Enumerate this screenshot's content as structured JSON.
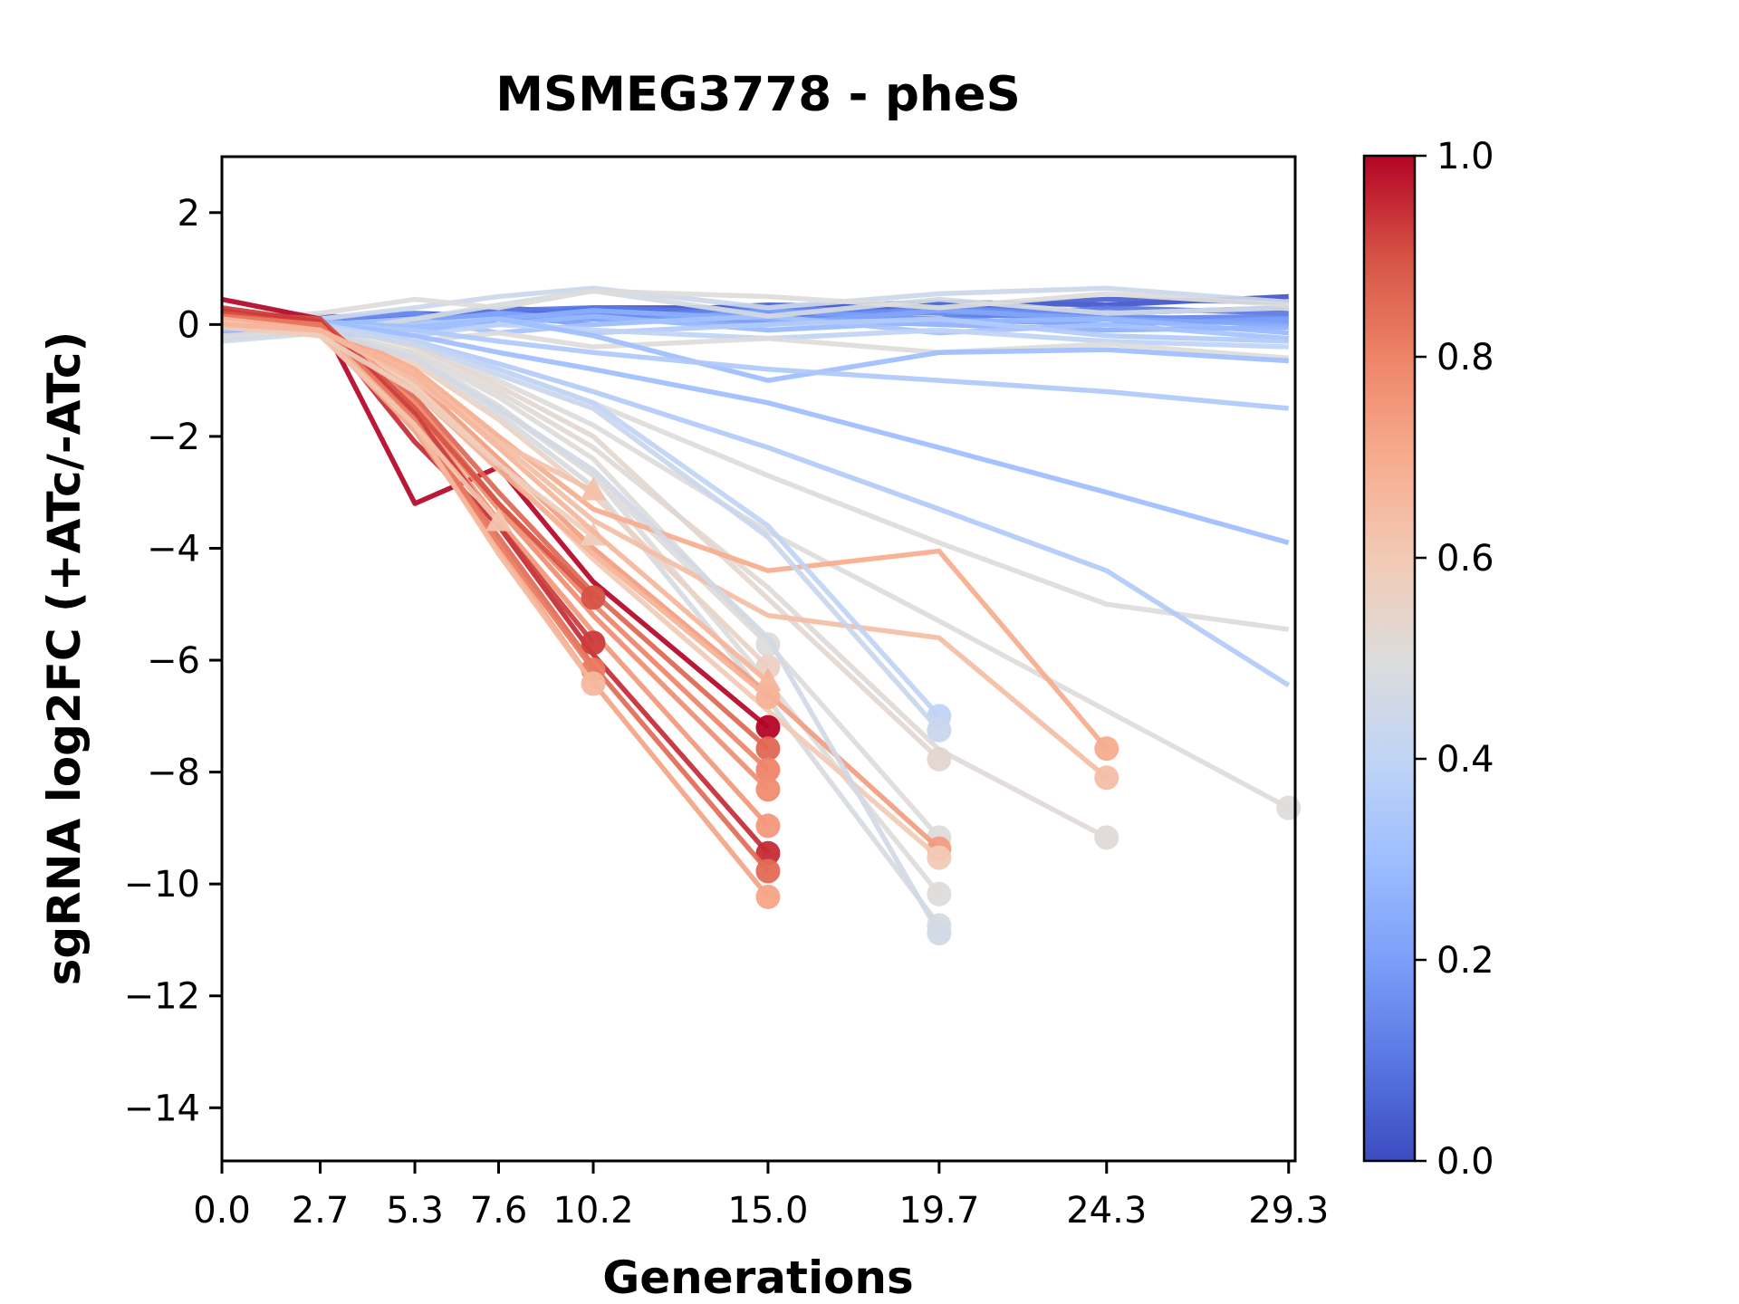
{
  "title": "MSMEG3778 - pheS",
  "xlabel": "Generations",
  "ylabel": "sgRNA log2FC (+ATc/-ATc)",
  "chart_data": {
    "type": "line",
    "title": "MSMEG3778 - pheS",
    "xlabel": "Generations",
    "ylabel": "sgRNA log2FC (+ATc/-ATc)",
    "xlim": [
      0,
      29.48
    ],
    "ylim": [
      -14.95,
      3.0
    ],
    "grid": false,
    "x": [
      0.0,
      2.7,
      5.3,
      7.6,
      10.2,
      15.0,
      19.7,
      24.3,
      29.3
    ],
    "xtick_labels": [
      "0.0",
      "2.7",
      "5.3",
      "7.6",
      "10.2",
      "15.0",
      "19.7",
      "24.3",
      "29.3"
    ],
    "yticks": [
      2,
      0,
      -2,
      -4,
      -6,
      -8,
      -10,
      -12,
      -14
    ],
    "ytick_labels": [
      "2",
      "0",
      "−2",
      "−4",
      "−6",
      "−8",
      "−10",
      "−12",
      "−14"
    ],
    "colorbar": {
      "vmin": 0.0,
      "vmax": 1.0,
      "ticks": [
        1.0,
        0.8,
        0.6,
        0.4,
        0.2,
        0.0
      ],
      "tick_labels": [
        "1.0",
        "0.8",
        "0.6",
        "0.4",
        "0.2",
        "0.0"
      ],
      "cmap": "coolwarm",
      "anchors": [
        [
          0.0,
          "#3b4cc0"
        ],
        [
          0.1,
          "#5977e3"
        ],
        [
          0.2,
          "#7b9ff9"
        ],
        [
          0.3,
          "#9ebeff"
        ],
        [
          0.4,
          "#c0d4f5"
        ],
        [
          0.5,
          "#dddcdb"
        ],
        [
          0.6,
          "#f2cab5"
        ],
        [
          0.7,
          "#f7ac8e"
        ],
        [
          0.8,
          "#ee8468"
        ],
        [
          0.9,
          "#d65244"
        ],
        [
          1.0,
          "#b40426"
        ]
      ]
    },
    "series_note": "c = colormap value (0-1); y values align with x[0..len-1]; m: o=circle end marker, t=triangle end marker",
    "series": [
      {
        "c": 0.5,
        "y": [
          0,
          0,
          -0.3,
          -0.8,
          -1.4,
          -2.7,
          -3.9,
          -5.0,
          -5.45
        ],
        "m": ""
      },
      {
        "c": 0.5,
        "y": [
          0.05,
          0,
          -0.4,
          -1.0,
          -1.8,
          -3.7,
          -5.3,
          -6.9,
          -8.64
        ],
        "m": "o"
      },
      {
        "c": 0.51,
        "y": [
          0,
          -0.1,
          -0.5,
          -1.2,
          -2.2,
          -4.7,
          -7.6,
          -9.17
        ],
        "m": "o"
      },
      {
        "c": 0.53,
        "y": [
          0,
          0,
          -0.4,
          -1.1,
          -2.0,
          -4.9,
          -7.77
        ],
        "m": "o"
      },
      {
        "c": 0.5,
        "y": [
          -0.05,
          -0.1,
          -0.5,
          -1.3,
          -2.4,
          -5.7,
          -9.17
        ],
        "m": "o"
      },
      {
        "c": 0.5,
        "y": [
          0,
          -0.05,
          -0.55,
          -1.45,
          -2.7,
          -6.4,
          -10.18
        ],
        "m": "o"
      },
      {
        "c": 0.48,
        "y": [
          -0.1,
          -0.15,
          -0.6,
          -1.6,
          -2.9,
          -6.7,
          -10.74
        ],
        "m": "o"
      },
      {
        "c": 0.5,
        "y": [
          0,
          0,
          -0.6,
          -1.5,
          -2.7,
          -5.72
        ],
        "m": "o"
      },
      {
        "c": 0.56,
        "y": [
          -0.05,
          -0.1,
          -0.7,
          -1.7,
          -3.05,
          -6.12
        ],
        "m": "o"
      },
      {
        "c": 0.7,
        "y": [
          0.1,
          0,
          -0.8,
          -2.0,
          -3.3,
          -4.4,
          -4.05,
          -7.58
        ],
        "m": "o"
      },
      {
        "c": 0.64,
        "y": [
          0,
          -0.1,
          -0.9,
          -2.1,
          -3.5,
          -5.2,
          -5.6,
          -8.1
        ],
        "m": "o"
      },
      {
        "c": 0.74,
        "y": [
          0.05,
          0,
          -1.0,
          -2.4,
          -4.0,
          -6.6,
          -9.37
        ],
        "m": "o"
      },
      {
        "c": 0.6,
        "y": [
          -0.1,
          -0.15,
          -1.1,
          -2.5,
          -4.2,
          -6.9,
          -9.53
        ],
        "m": "o"
      },
      {
        "c": 0.02,
        "y": [
          0.15,
          0.1,
          0.2,
          0.15,
          0.3,
          0.3,
          0.4,
          0.35,
          0.5
        ],
        "m": ""
      },
      {
        "c": 0.05,
        "y": [
          0.05,
          0.15,
          0.1,
          0.3,
          0.2,
          0.35,
          0.3,
          0.45,
          0.4
        ],
        "m": ""
      },
      {
        "c": 0.08,
        "y": [
          -0.05,
          0.05,
          0.15,
          0.1,
          0.25,
          0.15,
          0.35,
          0.2,
          0.3
        ],
        "m": ""
      },
      {
        "c": 0.1,
        "y": [
          0.1,
          0,
          0.1,
          0.25,
          0.3,
          0.2,
          0.1,
          0.3,
          0.2
        ],
        "m": ""
      },
      {
        "c": 0.13,
        "y": [
          -0.1,
          0.1,
          0,
          0.15,
          0.1,
          0.3,
          0.2,
          0.1,
          0.15
        ],
        "m": ""
      },
      {
        "c": 0.16,
        "y": [
          0,
          0.1,
          0.2,
          0,
          0.2,
          0.05,
          0.3,
          0.15,
          0.05
        ],
        "m": ""
      },
      {
        "c": 0.2,
        "y": [
          -0.15,
          0,
          0.1,
          0.15,
          0,
          0.25,
          0.1,
          0,
          0.1
        ],
        "m": ""
      },
      {
        "c": 0.22,
        "y": [
          0.05,
          -0.05,
          0.05,
          0.2,
          0.1,
          0,
          0.25,
          0.1,
          0
        ],
        "m": ""
      },
      {
        "c": 0.25,
        "y": [
          -0.2,
          -0.1,
          0,
          0.1,
          0.25,
          0.1,
          0,
          -0.1,
          -0.05
        ],
        "m": ""
      },
      {
        "c": 0.28,
        "y": [
          0.1,
          0.05,
          -0.1,
          0,
          0.15,
          -0.1,
          0.05,
          0.1,
          -0.15
        ],
        "m": ""
      },
      {
        "c": 0.32,
        "y": [
          -0.1,
          0,
          0.1,
          -0.15,
          0,
          0.15,
          -0.15,
          0,
          -0.25
        ],
        "m": ""
      },
      {
        "c": 0.36,
        "y": [
          0,
          -0.1,
          0,
          0.1,
          -0.15,
          0,
          0.1,
          -0.2,
          -0.3
        ],
        "m": ""
      },
      {
        "c": 0.4,
        "y": [
          -0.25,
          -0.1,
          -0.2,
          0,
          -0.1,
          -0.25,
          -0.1,
          -0.3,
          -0.4
        ],
        "m": ""
      },
      {
        "c": 0.44,
        "y": [
          0.2,
          0.1,
          0.3,
          0.5,
          0.65,
          0.3,
          0.55,
          0.65,
          0.4
        ],
        "m": ""
      },
      {
        "c": 0.47,
        "y": [
          -0.3,
          -0.15,
          0.1,
          0.35,
          0.6,
          0.15,
          0.45,
          0.2,
          0.3
        ],
        "m": ""
      },
      {
        "c": 0.5,
        "y": [
          0.1,
          0.2,
          0.45,
          0.3,
          0.6,
          0.5,
          0.3,
          0.55,
          0.35
        ],
        "m": ""
      },
      {
        "c": 0.5,
        "y": [
          -0.2,
          -0.1,
          -0.3,
          -0.15,
          -0.4,
          -0.25,
          -0.5,
          -0.35,
          -0.6
        ],
        "m": ""
      },
      {
        "c": 0.3,
        "y": [
          0,
          0.05,
          -0.05,
          0.1,
          -0.2,
          -1.0,
          -0.5,
          -0.45,
          -0.65
        ],
        "m": ""
      },
      {
        "c": 0.35,
        "y": [
          0.05,
          0,
          -0.1,
          -0.3,
          -0.5,
          -0.8,
          -1.0,
          -1.2,
          -1.5
        ],
        "m": ""
      },
      {
        "c": 0.3,
        "y": [
          0.1,
          0.05,
          -0.2,
          -0.5,
          -0.8,
          -1.4,
          -2.2,
          -3.0,
          -3.9
        ],
        "m": ""
      },
      {
        "c": 0.36,
        "y": [
          0,
          -0.1,
          -0.3,
          -0.7,
          -1.2,
          -2.2,
          -3.3,
          -4.4,
          -6.45
        ],
        "m": ""
      },
      {
        "c": 0.4,
        "y": [
          0,
          0,
          -0.3,
          -0.8,
          -1.4,
          -3.6,
          -7.0
        ],
        "m": "o"
      },
      {
        "c": 0.43,
        "y": [
          0.05,
          -0.05,
          -0.35,
          -0.9,
          -1.5,
          -3.8,
          -7.25
        ],
        "m": "o"
      },
      {
        "c": 0.46,
        "y": [
          0,
          -0.1,
          -0.6,
          -1.5,
          -2.6,
          -5.6,
          -10.88
        ],
        "m": "o"
      },
      {
        "c": 1.0,
        "y": [
          0.45,
          0.1,
          -3.2,
          -2.55,
          -4.6,
          -7.2
        ],
        "m": "o"
      },
      {
        "c": 0.86,
        "y": [
          0.2,
          0.05,
          -1.3,
          -3.0,
          -4.8,
          -7.58
        ],
        "m": "o"
      },
      {
        "c": 0.8,
        "y": [
          0.1,
          0,
          -1.4,
          -3.2,
          -5.0,
          -7.96
        ],
        "m": "o"
      },
      {
        "c": 0.78,
        "y": [
          0.15,
          -0.05,
          -1.5,
          -3.3,
          -5.2,
          -8.31
        ],
        "m": "o"
      },
      {
        "c": 0.75,
        "y": [
          0,
          -0.1,
          -1.6,
          -3.5,
          -5.5,
          -8.96
        ],
        "m": "o"
      },
      {
        "c": 0.95,
        "y": [
          0.25,
          0,
          -2.1,
          -3.6,
          -5.9,
          -9.45
        ],
        "m": "o"
      },
      {
        "c": 0.85,
        "y": [
          0.1,
          -0.05,
          -1.8,
          -3.8,
          -6.1,
          -9.77
        ],
        "m": "o"
      },
      {
        "c": 0.72,
        "y": [
          0.05,
          -0.15,
          -1.9,
          -4.0,
          -6.4,
          -10.23
        ],
        "m": "o"
      },
      {
        "c": 0.68,
        "y": [
          0,
          -0.1,
          -1.2,
          -2.6,
          -4.1,
          -6.66
        ],
        "m": "o"
      },
      {
        "c": 0.9,
        "y": [
          0.2,
          0.1,
          -1.5,
          -3.2,
          -4.88
        ],
        "m": "o"
      },
      {
        "c": 0.93,
        "y": [
          0.3,
          0.05,
          -1.6,
          -3.6,
          -5.69
        ],
        "m": "o"
      },
      {
        "c": 0.82,
        "y": [
          0.15,
          0,
          -1.7,
          -3.9,
          -6.17
        ],
        "m": "o"
      },
      {
        "c": 0.66,
        "y": [
          0.1,
          -0.1,
          -1.8,
          -4.1,
          -6.42
        ],
        "m": "o"
      },
      {
        "c": 0.62,
        "y": [
          0.05,
          -0.2,
          -1.8,
          -3.53
        ],
        "m": "t"
      },
      {
        "c": 0.63,
        "y": [
          0,
          -0.1,
          -1.0,
          -2.1,
          -2.98
        ],
        "m": "t"
      },
      {
        "c": 0.58,
        "y": [
          -0.05,
          -0.2,
          -1.2,
          -2.5,
          -3.79
        ],
        "m": "t"
      },
      {
        "c": 0.67,
        "y": [
          0,
          -0.1,
          -0.9,
          -2.2,
          -3.7,
          -6.39
        ],
        "m": "t"
      }
    ]
  }
}
